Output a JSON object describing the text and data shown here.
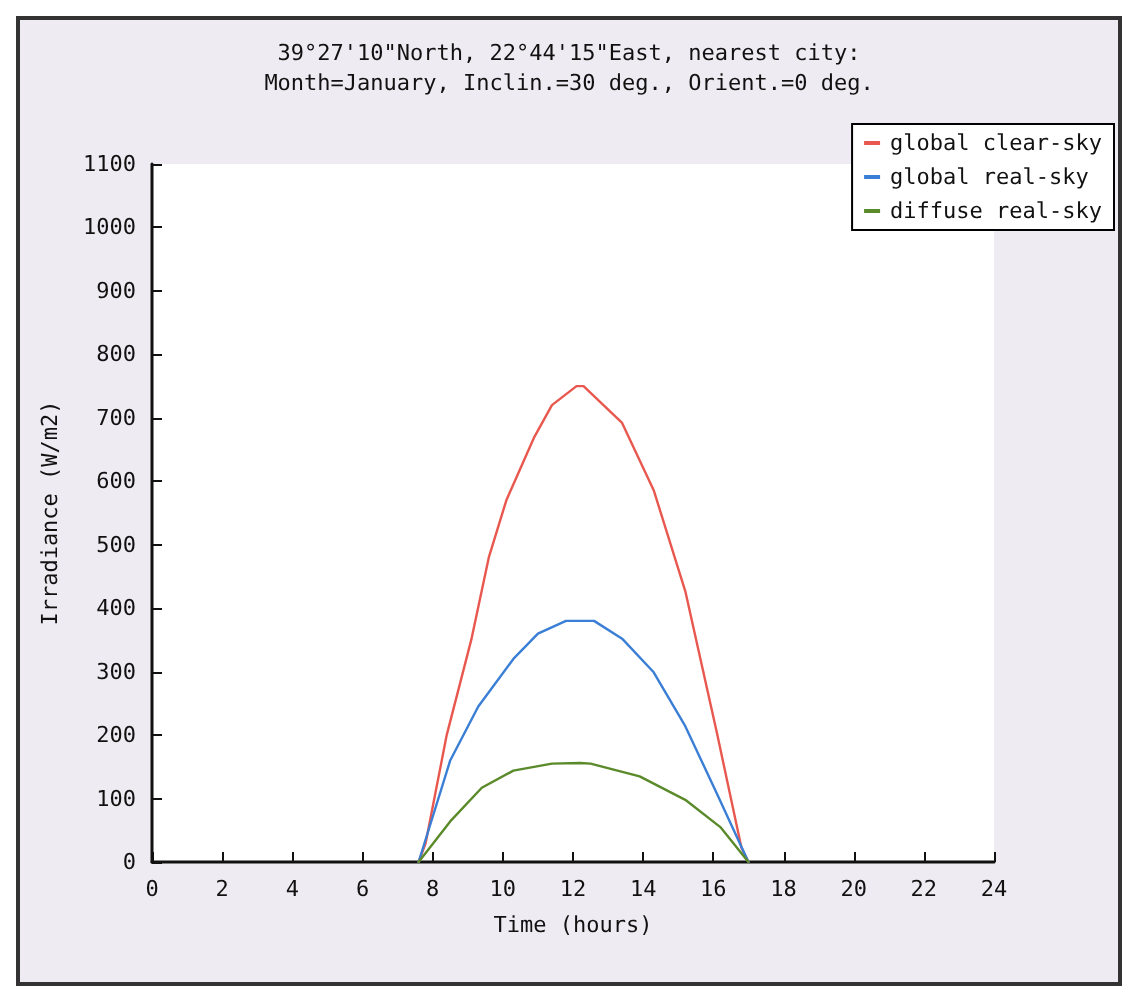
{
  "chart_data": {
    "type": "line",
    "title": "39°27'10\"North, 22°44'15\"East, nearest city:",
    "subtitle": "Month=January, Inclin.=30 deg., Orient.=0 deg.",
    "xlabel": "Time (hours)",
    "ylabel": "Irradiance (W/m2)",
    "xlim": [
      0,
      24
    ],
    "xticks": [
      0,
      2,
      4,
      6,
      8,
      10,
      12,
      14,
      16,
      18,
      20,
      22,
      24
    ],
    "ylim": [
      0,
      1100
    ],
    "yticks": [
      0,
      100,
      200,
      300,
      400,
      500,
      600,
      700,
      800,
      900,
      1000,
      1100
    ],
    "grid": false,
    "legend": "top right",
    "marker": "none",
    "line_style": "solid",
    "series": [
      {
        "name": "global clear-sky",
        "color": "#e8584f",
        "x": [
          7.6,
          7.8,
          8.4,
          9.1,
          9.6,
          10.1,
          10.9,
          11.4,
          12.1,
          12.3,
          13.4,
          14.3,
          15.2,
          16.1,
          16.8,
          17
        ],
        "values": [
          0,
          30,
          200,
          350,
          480,
          570,
          670,
          720,
          750,
          750,
          692,
          586,
          427,
          204,
          23,
          0
        ]
      },
      {
        "name": "global real-sky",
        "color": "#3a7fd5",
        "x": [
          7.6,
          8.5,
          9.3,
          10.3,
          11,
          11.8,
          12.6,
          13.4,
          14.3,
          15.2,
          16.1,
          17
        ],
        "values": [
          0,
          160,
          245,
          320,
          360,
          380,
          380,
          352,
          299,
          214,
          108,
          0
        ]
      },
      {
        "name": "diffuse real-sky",
        "color": "#5a8a2a",
        "x": [
          7.6,
          8.5,
          9.4,
          10.3,
          11.4,
          12.2,
          12.5,
          13.9,
          15.2,
          16.2,
          17
        ],
        "values": [
          0,
          64,
          117,
          144,
          155,
          156,
          155,
          135,
          98,
          55,
          0
        ]
      }
    ]
  }
}
